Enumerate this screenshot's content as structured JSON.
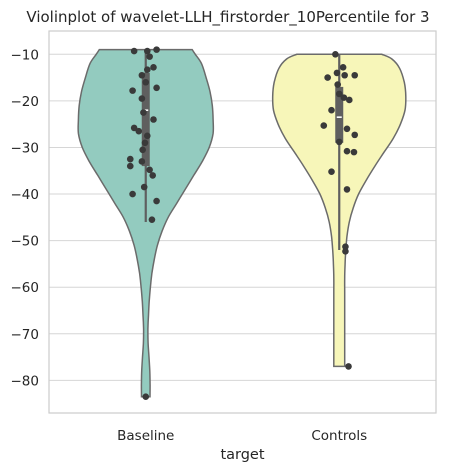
{
  "chart_data": {
    "type": "violin",
    "title": "Violinplot of wavelet-LLH_firstorder_10Percentile for 3",
    "xlabel": "target",
    "ylabel": "",
    "ylim": [
      -87,
      -5
    ],
    "yticks": [
      -10,
      -20,
      -30,
      -40,
      -50,
      -60,
      -70,
      -80
    ],
    "ytick_labels": [
      "−10",
      "−20",
      "−30",
      "−40",
      "−50",
      "−60",
      "−70",
      "−80"
    ],
    "grid": "horizontal",
    "categories": [
      "Baseline",
      "Controls"
    ],
    "colors": {
      "Baseline": "#93cbbf",
      "Controls": "#f7f6b9",
      "outline": "#6b6b6b",
      "points": "#3a3a3a",
      "box": "#5f5f5f",
      "grid": "#d6d6d6",
      "frame": "#cccccc"
    },
    "violins": [
      {
        "category": "Baseline",
        "min": -83.5,
        "max": -9.0,
        "q1": -34,
        "median": -22,
        "q3": -14,
        "whisker_low": -46,
        "whisker_high": -9.5,
        "profile": [
          [
            -9.0,
            0.6
          ],
          [
            -10,
            0.64
          ],
          [
            -12,
            0.72
          ],
          [
            -15,
            0.78
          ],
          [
            -18,
            0.83
          ],
          [
            -21,
            0.86
          ],
          [
            -24,
            0.87
          ],
          [
            -27,
            0.87
          ],
          [
            -30,
            0.82
          ],
          [
            -33,
            0.73
          ],
          [
            -36,
            0.62
          ],
          [
            -39,
            0.51
          ],
          [
            -42,
            0.4
          ],
          [
            -45,
            0.29
          ],
          [
            -48,
            0.21
          ],
          [
            -51,
            0.15
          ],
          [
            -54,
            0.11
          ],
          [
            -57,
            0.08
          ],
          [
            -60,
            0.06
          ],
          [
            -63,
            0.045
          ],
          [
            -66,
            0.035
          ],
          [
            -69,
            0.028
          ],
          [
            -72,
            0.03
          ],
          [
            -75,
            0.042
          ],
          [
            -78,
            0.052
          ],
          [
            -81,
            0.056
          ],
          [
            -83.5,
            0.055
          ]
        ],
        "points": [
          [
            -9.3,
            -0.15
          ],
          [
            -9.3,
            0.02
          ],
          [
            -9.0,
            0.14
          ],
          [
            -10.5,
            0.05
          ],
          [
            -12.8,
            0.1
          ],
          [
            -13.3,
            0.02
          ],
          [
            -14.5,
            -0.05
          ],
          [
            -16.0,
            0.0
          ],
          [
            -17.2,
            0.14
          ],
          [
            -17.8,
            -0.17
          ],
          [
            -19.5,
            -0.05
          ],
          [
            -22.5,
            -0.03
          ],
          [
            -24.0,
            0.1
          ],
          [
            -25.8,
            -0.15
          ],
          [
            -26.5,
            -0.09
          ],
          [
            -27.5,
            0.02
          ],
          [
            -29.0,
            -0.01
          ],
          [
            -30.5,
            -0.04
          ],
          [
            -32.5,
            -0.2
          ],
          [
            -33.0,
            -0.05
          ],
          [
            -34.0,
            -0.2
          ],
          [
            -34.8,
            0.05
          ],
          [
            -36.0,
            0.09
          ],
          [
            -38.5,
            -0.02
          ],
          [
            -40.0,
            -0.17
          ],
          [
            -41.5,
            0.14
          ],
          [
            -45.5,
            0.08
          ],
          [
            -83.5,
            0.0
          ]
        ]
      },
      {
        "category": "Controls",
        "min": -77.0,
        "max": -10.0,
        "q1": -29,
        "median": -23.5,
        "q3": -17,
        "whisker_low": -52,
        "whisker_high": -10,
        "profile": [
          [
            -10.0,
            0.55
          ],
          [
            -11,
            0.68
          ],
          [
            -13,
            0.78
          ],
          [
            -16,
            0.84
          ],
          [
            -19,
            0.86
          ],
          [
            -22,
            0.85
          ],
          [
            -25,
            0.79
          ],
          [
            -28,
            0.7
          ],
          [
            -31,
            0.58
          ],
          [
            -34,
            0.46
          ],
          [
            -37,
            0.35
          ],
          [
            -40,
            0.25
          ],
          [
            -43,
            0.18
          ],
          [
            -46,
            0.13
          ],
          [
            -49,
            0.1
          ],
          [
            -52,
            0.085
          ],
          [
            -55,
            0.075
          ],
          [
            -58,
            0.07
          ],
          [
            -61,
            0.07
          ],
          [
            -64,
            0.07
          ],
          [
            -67,
            0.07
          ],
          [
            -70,
            0.07
          ],
          [
            -73,
            0.07
          ],
          [
            -77.0,
            0.07
          ]
        ],
        "points": [
          [
            -10.0,
            -0.05
          ],
          [
            -12.8,
            0.05
          ],
          [
            -14.0,
            -0.03
          ],
          [
            -14.5,
            0.07
          ],
          [
            -14.5,
            0.2
          ],
          [
            -15.0,
            -0.15
          ],
          [
            -16.5,
            -0.02
          ],
          [
            -18.5,
            0.0
          ],
          [
            -19.3,
            0.06
          ],
          [
            -19.8,
            0.13
          ],
          [
            -22.0,
            -0.1
          ],
          [
            -25.3,
            -0.2
          ],
          [
            -26.0,
            0.1
          ],
          [
            -27.3,
            0.2
          ],
          [
            -28.8,
            0.0
          ],
          [
            -30.8,
            0.1
          ],
          [
            -31.0,
            0.19
          ],
          [
            -35.2,
            -0.1
          ],
          [
            -39.0,
            0.1
          ],
          [
            -51.3,
            0.08
          ],
          [
            -52.3,
            0.08
          ],
          [
            -77.0,
            0.12
          ]
        ]
      }
    ]
  }
}
